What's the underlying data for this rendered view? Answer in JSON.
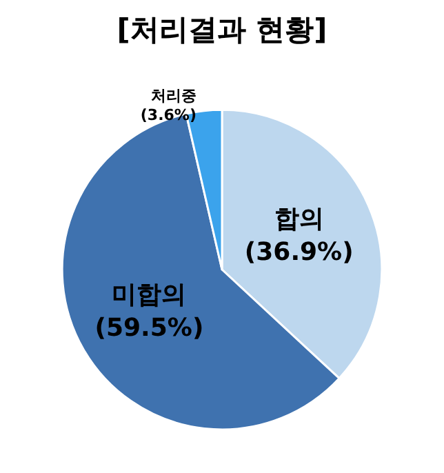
{
  "chart_data": {
    "type": "pie",
    "title": "[처리결과 현황]",
    "categories": [
      "합의",
      "미합의",
      "처리중"
    ],
    "values": [
      36.9,
      59.5,
      3.6
    ],
    "value_labels": [
      "(36.9%)",
      "(59.5%)",
      "(3.6%)"
    ],
    "colors": [
      "#bdd7ee",
      "#3f72af",
      "#3ba3ec"
    ],
    "legend": false
  }
}
